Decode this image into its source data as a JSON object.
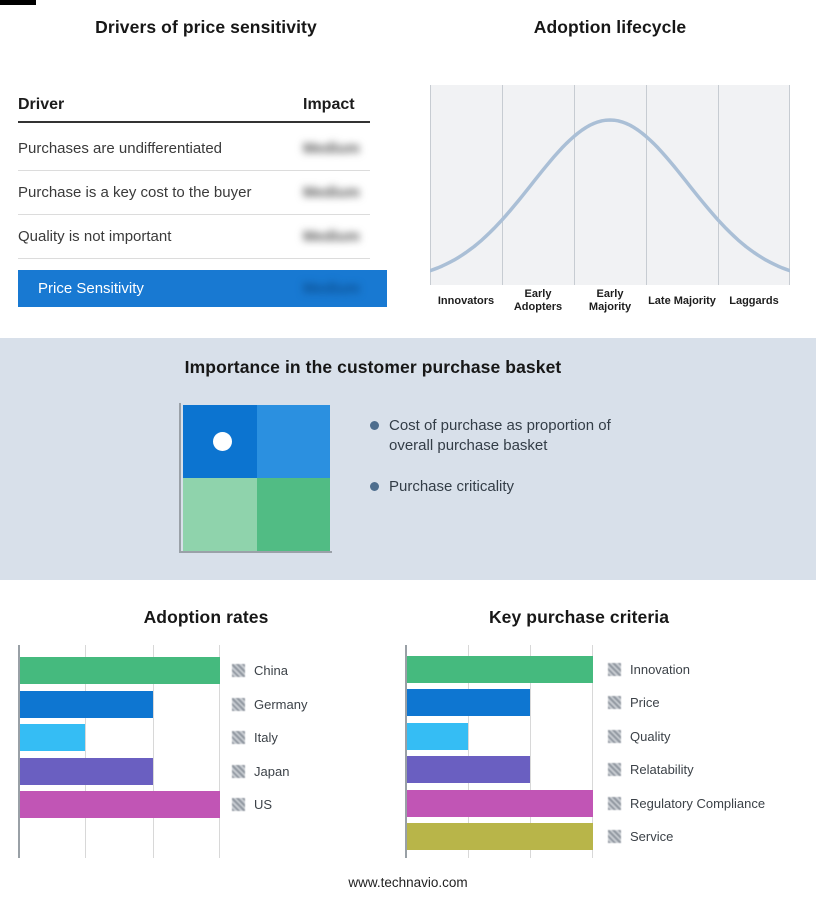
{
  "page": {
    "footer": "www.technavio.com",
    "background": "#ffffff",
    "mid_band_color": "#d8e0ea"
  },
  "drivers_panel": {
    "title": "Drivers of price sensitivity",
    "columns": {
      "driver": "Driver",
      "impact": "Impact"
    },
    "rows": [
      {
        "driver": "Purchases are undifferentiated",
        "impact": "Medium"
      },
      {
        "driver": "Purchase is a key cost to the buyer",
        "impact": "Medium"
      },
      {
        "driver": "Quality is not important",
        "impact": "Medium"
      }
    ],
    "summary": {
      "label": "Price Sensitivity",
      "impact": "Medium",
      "color": "#1879d2"
    }
  },
  "basket_section": {
    "title": "Importance in the customer purchase basket",
    "bullets": [
      "Cost of purchase as proportion of overall purchase basket",
      "Purchase criticality"
    ],
    "quadrant_colors": {
      "top_left": "#0c74d0",
      "top_right": "#2b90e0",
      "bottom_left": "#8fd3ac",
      "bottom_right": "#51bc84"
    },
    "marker": "white-dot-top-left-quadrant"
  },
  "chart_data": [
    {
      "type": "line",
      "subtype": "bell-curve",
      "title": "Adoption lifecycle",
      "categories": [
        "Innovators",
        "Early Adopters",
        "Early Majority",
        "Late Majority",
        "Laggards"
      ],
      "description": "Normal-distribution adoption curve peaking over Early Majority",
      "line_color": "#aabfd6",
      "grid": true,
      "legend_position": "none"
    },
    {
      "type": "bar",
      "orientation": "horizontal",
      "title": "Adoption rates",
      "categories": [
        "China",
        "Germany",
        "Italy",
        "Japan",
        "US"
      ],
      "values": [
        3,
        2,
        1,
        2,
        3
      ],
      "xlim": [
        0,
        3
      ],
      "colors": [
        "#45ba7e",
        "#0e76d1",
        "#35bdf4",
        "#6a5fc1",
        "#c155b5"
      ],
      "grid": true,
      "legend_position": "right"
    },
    {
      "type": "bar",
      "orientation": "horizontal",
      "title": "Key purchase criteria",
      "categories": [
        "Innovation",
        "Price",
        "Quality",
        "Relatability",
        "Regulatory Compliance",
        "Service"
      ],
      "values": [
        3,
        2,
        1,
        2,
        3,
        3
      ],
      "xlim": [
        0,
        3
      ],
      "colors": [
        "#45ba7e",
        "#0e76d1",
        "#35bdf4",
        "#6a5fc1",
        "#c155b5",
        "#b8b549"
      ],
      "grid": true,
      "legend_position": "right"
    }
  ]
}
